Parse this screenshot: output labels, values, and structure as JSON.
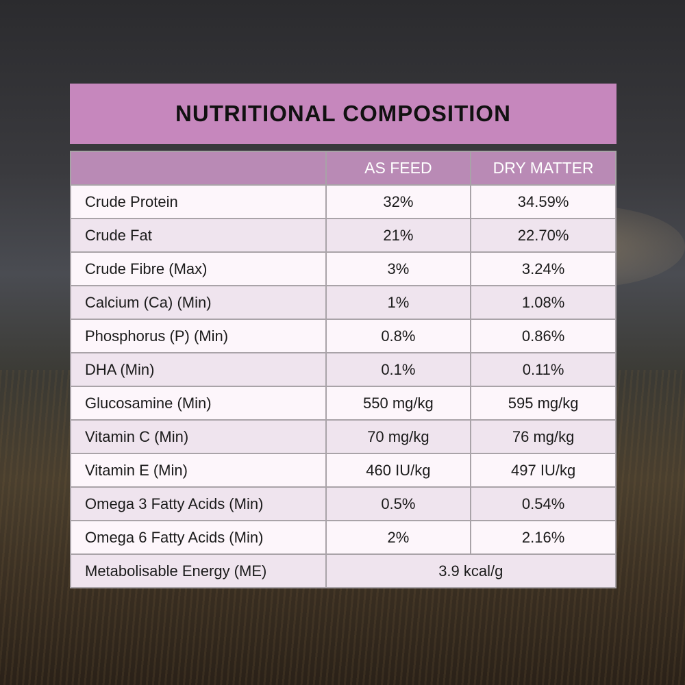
{
  "header": {
    "title": "NUTRITIONAL COMPOSITION"
  },
  "table": {
    "columns": [
      "AS FEED",
      "DRY MATTER"
    ],
    "rows": [
      [
        "Crude Protein",
        "32%",
        "34.59%"
      ],
      [
        "Crude Fat",
        "21%",
        "22.70%"
      ],
      [
        "Crude Fibre (Max)",
        "3%",
        "3.24%"
      ],
      [
        "Calcium (Ca) (Min)",
        "1%",
        "1.08%"
      ],
      [
        "Phosphorus (P) (Min)",
        "0.8%",
        "0.86%"
      ],
      [
        "DHA (Min)",
        "0.1%",
        "0.11%"
      ],
      [
        "Glucosamine (Min)",
        "550 mg/kg",
        "595 mg/kg"
      ],
      [
        "Vitamin C (Min)",
        "70 mg/kg",
        "76 mg/kg"
      ],
      [
        "Vitamin E (Min)",
        "460 IU/kg",
        "497 IU/kg"
      ],
      [
        "Omega 3 Fatty Acids (Min)",
        "0.5%",
        "0.54%"
      ],
      [
        "Omega 6 Fatty Acids (Min)",
        "2%",
        "2.16%"
      ],
      [
        "Metabolisable Energy (ME)",
        "3.9 kcal/g"
      ]
    ]
  }
}
